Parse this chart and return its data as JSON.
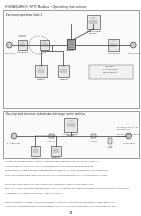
{
  "page_num": "34",
  "header_text": "HYGRASGARD® RFTF-Modbus • Operating Instructions",
  "top_diagram_title": "Extension question Indis 1",
  "bottom_diagram_title": "Bus stop data structure, subordinate discharge control and bus",
  "background_color": "#ffffff",
  "box_color": "#000000",
  "diagram_bg": "#f8f8f8",
  "light_gray": "#cccccc",
  "mid_gray": "#999999"
}
